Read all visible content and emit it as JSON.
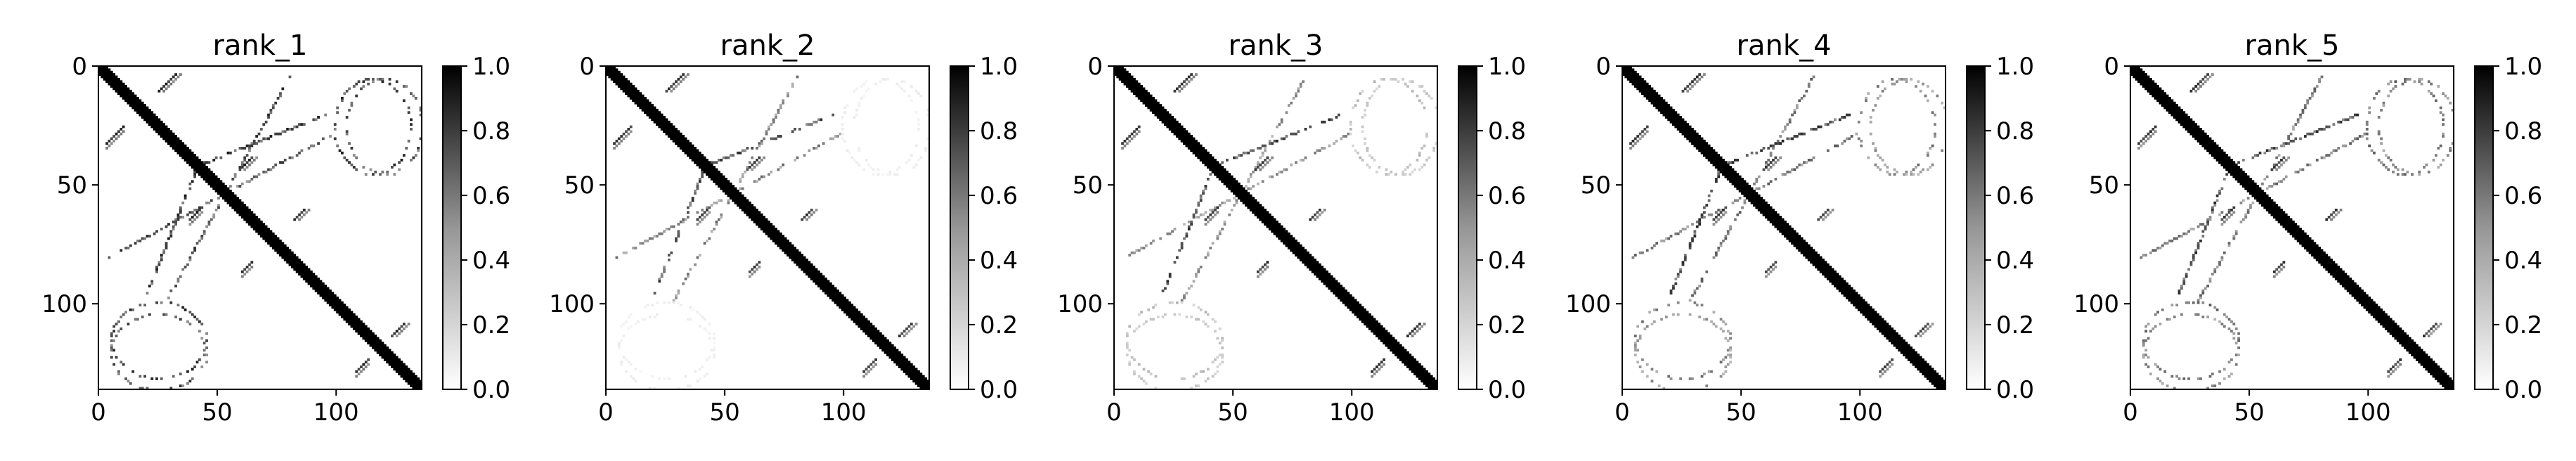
{
  "chart_data": [
    {
      "type": "heatmap",
      "title": "rank_1",
      "size": 136,
      "xlim": [
        0,
        136
      ],
      "ylim": [
        136,
        0
      ],
      "xticks": [
        0,
        50,
        100
      ],
      "yticks": [
        0,
        50,
        100
      ],
      "colorbar": {
        "min": 0.0,
        "max": 1.0,
        "ticks": [
          "0.0",
          "0.2",
          "0.4",
          "0.6",
          "0.8",
          "1.0"
        ],
        "colormap": "Greys"
      },
      "contact_strength": {
        "diagonal": 1.0,
        "antidiagonal_upper": 0.9,
        "crossing_band": 0.85,
        "loop_lower_left": 0.9,
        "loop_upper_right": 0.8
      }
    },
    {
      "type": "heatmap",
      "title": "rank_2",
      "size": 136,
      "xlim": [
        0,
        136
      ],
      "ylim": [
        136,
        0
      ],
      "xticks": [
        0,
        50,
        100
      ],
      "yticks": [
        0,
        50,
        100
      ],
      "colorbar": {
        "min": 0.0,
        "max": 1.0,
        "ticks": [
          "0.0",
          "0.2",
          "0.4",
          "0.6",
          "0.8",
          "1.0"
        ],
        "colormap": "Greys"
      },
      "contact_strength": {
        "diagonal": 1.0,
        "antidiagonal_upper": 0.85,
        "crossing_band": 0.6,
        "loop_lower_left": 0.08,
        "loop_upper_right": 0.08
      }
    },
    {
      "type": "heatmap",
      "title": "rank_3",
      "size": 136,
      "xlim": [
        0,
        136
      ],
      "ylim": [
        136,
        0
      ],
      "xticks": [
        0,
        50,
        100
      ],
      "yticks": [
        0,
        50,
        100
      ],
      "colorbar": {
        "min": 0.0,
        "max": 1.0,
        "ticks": [
          "0.0",
          "0.2",
          "0.4",
          "0.6",
          "0.8",
          "1.0"
        ],
        "colormap": "Greys"
      },
      "contact_strength": {
        "diagonal": 1.0,
        "antidiagonal_upper": 0.85,
        "crossing_band": 0.55,
        "loop_lower_left": 0.3,
        "loop_upper_right": 0.25
      }
    },
    {
      "type": "heatmap",
      "title": "rank_4",
      "size": 136,
      "xlim": [
        0,
        136
      ],
      "ylim": [
        136,
        0
      ],
      "xticks": [
        0,
        50,
        100
      ],
      "yticks": [
        0,
        50,
        100
      ],
      "colorbar": {
        "min": 0.0,
        "max": 1.0,
        "ticks": [
          "0.0",
          "0.2",
          "0.4",
          "0.6",
          "0.8",
          "1.0"
        ],
        "colormap": "Greys"
      },
      "contact_strength": {
        "diagonal": 1.0,
        "antidiagonal_upper": 0.85,
        "crossing_band": 0.65,
        "loop_lower_left": 0.6,
        "loop_upper_right": 0.5
      }
    },
    {
      "type": "heatmap",
      "title": "rank_5",
      "size": 136,
      "xlim": [
        0,
        136
      ],
      "ylim": [
        136,
        0
      ],
      "xticks": [
        0,
        50,
        100
      ],
      "yticks": [
        0,
        50,
        100
      ],
      "colorbar": {
        "min": 0.0,
        "max": 1.0,
        "ticks": [
          "0.0",
          "0.2",
          "0.4",
          "0.6",
          "0.8",
          "1.0"
        ],
        "colormap": "Greys"
      },
      "contact_strength": {
        "diagonal": 1.0,
        "antidiagonal_upper": 0.85,
        "crossing_band": 0.65,
        "loop_lower_left": 0.65,
        "loop_upper_right": 0.55
      }
    }
  ]
}
